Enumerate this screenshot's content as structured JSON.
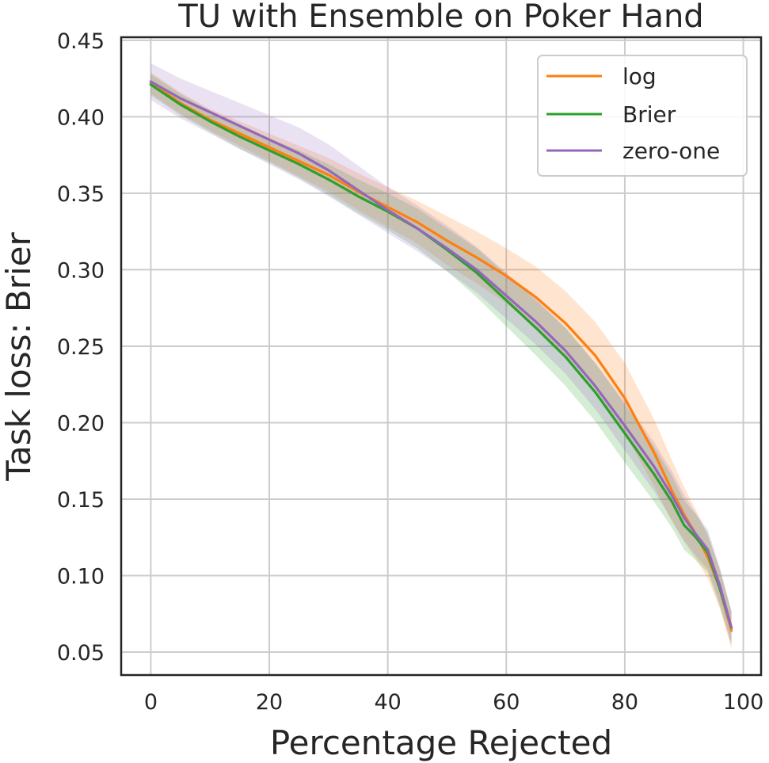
{
  "chart_data": {
    "type": "line",
    "title": "TU with Ensemble on Poker Hand",
    "xlabel": "Percentage Rejected",
    "ylabel": "Task loss: Brier",
    "xlim": [
      -5,
      103
    ],
    "ylim": [
      0.035,
      0.452
    ],
    "xticks": [
      0,
      20,
      40,
      60,
      80,
      100
    ],
    "yticks": [
      0.05,
      0.1,
      0.15,
      0.2,
      0.25,
      0.3,
      0.35,
      0.4,
      0.45
    ],
    "xtick_labels": [
      "0",
      "20",
      "40",
      "60",
      "80",
      "100"
    ],
    "ytick_labels": [
      "0.05",
      "0.10",
      "0.15",
      "0.20",
      "0.25",
      "0.30",
      "0.35",
      "0.40",
      "0.45"
    ],
    "grid": true,
    "legend_position": "top-right",
    "x": [
      0,
      5,
      10,
      15,
      20,
      25,
      30,
      35,
      40,
      45,
      50,
      55,
      60,
      65,
      70,
      75,
      80,
      85,
      88,
      90,
      92,
      94,
      96,
      98
    ],
    "series": [
      {
        "name": "log",
        "color": "#ff7f0e",
        "values": [
          0.422,
          0.409,
          0.398,
          0.389,
          0.38,
          0.371,
          0.362,
          0.351,
          0.341,
          0.331,
          0.319,
          0.308,
          0.296,
          0.282,
          0.265,
          0.244,
          0.216,
          0.18,
          0.155,
          0.14,
          0.127,
          0.112,
          0.092,
          0.064
        ],
        "band": [
          0.007,
          0.007,
          0.007,
          0.008,
          0.009,
          0.01,
          0.011,
          0.012,
          0.013,
          0.014,
          0.016,
          0.017,
          0.018,
          0.02,
          0.021,
          0.022,
          0.023,
          0.022,
          0.02,
          0.018,
          0.016,
          0.014,
          0.013,
          0.012
        ]
      },
      {
        "name": "Brier",
        "color": "#2ca02c",
        "values": [
          0.421,
          0.408,
          0.397,
          0.387,
          0.378,
          0.369,
          0.359,
          0.348,
          0.338,
          0.327,
          0.313,
          0.298,
          0.28,
          0.262,
          0.243,
          0.22,
          0.193,
          0.166,
          0.148,
          0.133,
          0.125,
          0.115,
          0.092,
          0.066
        ],
        "band": [
          0.007,
          0.007,
          0.007,
          0.008,
          0.008,
          0.009,
          0.01,
          0.011,
          0.012,
          0.013,
          0.014,
          0.016,
          0.017,
          0.018,
          0.019,
          0.019,
          0.019,
          0.018,
          0.017,
          0.016,
          0.015,
          0.013,
          0.012,
          0.011
        ]
      },
      {
        "name": "zero-one",
        "color": "#9467bd",
        "values": [
          0.423,
          0.412,
          0.403,
          0.394,
          0.385,
          0.376,
          0.365,
          0.352,
          0.339,
          0.327,
          0.314,
          0.3,
          0.283,
          0.266,
          0.247,
          0.224,
          0.198,
          0.171,
          0.152,
          0.138,
          0.127,
          0.117,
          0.094,
          0.066
        ],
        "band": [
          0.012,
          0.013,
          0.014,
          0.015,
          0.016,
          0.017,
          0.017,
          0.016,
          0.015,
          0.015,
          0.015,
          0.015,
          0.015,
          0.015,
          0.015,
          0.015,
          0.016,
          0.016,
          0.016,
          0.015,
          0.014,
          0.013,
          0.012,
          0.011
        ]
      }
    ]
  }
}
